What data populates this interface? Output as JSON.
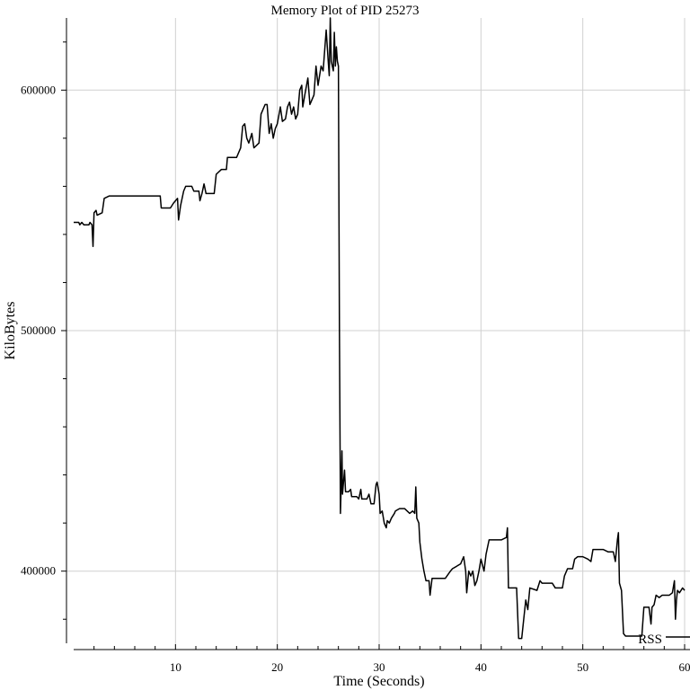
{
  "chart_data": {
    "type": "line",
    "title": "Memory Plot of PID 25273",
    "xlabel": "Time (Seconds)",
    "ylabel": "KiloBytes",
    "xlim": [
      0,
      60
    ],
    "ylim": [
      370000,
      630000
    ],
    "x_ticks": [
      10,
      20,
      30,
      40,
      50,
      60
    ],
    "x_tick_labels": [
      "10",
      "20",
      "30",
      "40",
      "50",
      "60"
    ],
    "y_ticks": [
      400000,
      500000,
      600000
    ],
    "y_tick_labels": [
      "400000",
      "500000",
      "600000"
    ],
    "grid": true,
    "legend": {
      "position": "bottom-right",
      "entries": [
        "RSS"
      ]
    },
    "series": [
      {
        "name": "RSS",
        "color": "#000000",
        "points": [
          [
            0,
            545000
          ],
          [
            0.5,
            545000
          ],
          [
            0.6,
            544000
          ],
          [
            0.8,
            545000
          ],
          [
            1.0,
            544000
          ],
          [
            1.5,
            544000
          ],
          [
            1.6,
            545000
          ],
          [
            1.8,
            544000
          ],
          [
            1.9,
            535000
          ],
          [
            2.0,
            549000
          ],
          [
            2.2,
            550000
          ],
          [
            2.3,
            548000
          ],
          [
            2.8,
            549000
          ],
          [
            3.0,
            555000
          ],
          [
            3.5,
            556000
          ],
          [
            8.5,
            556000
          ],
          [
            8.6,
            551000
          ],
          [
            9.5,
            551000
          ],
          [
            9.8,
            553000
          ],
          [
            10.2,
            555000
          ],
          [
            10.3,
            546000
          ],
          [
            10.5,
            552000
          ],
          [
            10.8,
            558000
          ],
          [
            11.0,
            560000
          ],
          [
            11.6,
            560000
          ],
          [
            11.8,
            558000
          ],
          [
            12.3,
            558000
          ],
          [
            12.4,
            554000
          ],
          [
            12.6,
            557000
          ],
          [
            12.8,
            561000
          ],
          [
            13.0,
            557000
          ],
          [
            13.8,
            557000
          ],
          [
            14.0,
            565000
          ],
          [
            14.5,
            567000
          ],
          [
            15.0,
            567000
          ],
          [
            15.1,
            572000
          ],
          [
            16.0,
            572000
          ],
          [
            16.4,
            576000
          ],
          [
            16.6,
            585000
          ],
          [
            16.8,
            586000
          ],
          [
            17.0,
            580000
          ],
          [
            17.2,
            578000
          ],
          [
            17.5,
            582000
          ],
          [
            17.7,
            576000
          ],
          [
            18.2,
            578000
          ],
          [
            18.4,
            590000
          ],
          [
            18.6,
            592000
          ],
          [
            18.8,
            594000
          ],
          [
            19.0,
            594000
          ],
          [
            19.2,
            582000
          ],
          [
            19.4,
            586000
          ],
          [
            19.6,
            580000
          ],
          [
            19.8,
            584000
          ],
          [
            20.0,
            586000
          ],
          [
            20.3,
            593000
          ],
          [
            20.5,
            587000
          ],
          [
            20.8,
            588000
          ],
          [
            21.0,
            593000
          ],
          [
            21.2,
            595000
          ],
          [
            21.4,
            590000
          ],
          [
            21.6,
            593000
          ],
          [
            21.8,
            588000
          ],
          [
            22.0,
            590000
          ],
          [
            22.2,
            600000
          ],
          [
            22.4,
            602000
          ],
          [
            22.5,
            593000
          ],
          [
            22.7,
            598000
          ],
          [
            23.0,
            605000
          ],
          [
            23.2,
            594000
          ],
          [
            23.4,
            596000
          ],
          [
            23.6,
            598000
          ],
          [
            23.8,
            610000
          ],
          [
            24.0,
            602000
          ],
          [
            24.3,
            610000
          ],
          [
            24.5,
            608000
          ],
          [
            24.8,
            625000
          ],
          [
            25.0,
            612000
          ],
          [
            25.1,
            606000
          ],
          [
            25.2,
            630000
          ],
          [
            25.3,
            612000
          ],
          [
            25.5,
            608000
          ],
          [
            25.6,
            624000
          ],
          [
            25.7,
            610000
          ],
          [
            25.8,
            618000
          ],
          [
            25.9,
            612000
          ],
          [
            26.0,
            610000
          ],
          [
            26.1,
            500000
          ],
          [
            26.2,
            424000
          ],
          [
            26.3,
            440000
          ],
          [
            26.35,
            450000
          ],
          [
            26.4,
            432000
          ],
          [
            26.6,
            442000
          ],
          [
            26.7,
            433000
          ],
          [
            27.0,
            433000
          ],
          [
            27.2,
            434000
          ],
          [
            27.3,
            431000
          ],
          [
            27.8,
            431000
          ],
          [
            28.0,
            430000
          ],
          [
            28.2,
            434000
          ],
          [
            28.3,
            430000
          ],
          [
            28.8,
            430000
          ],
          [
            29.0,
            432000
          ],
          [
            29.2,
            428000
          ],
          [
            29.5,
            428000
          ],
          [
            29.7,
            436000
          ],
          [
            29.8,
            437000
          ],
          [
            30.0,
            432000
          ],
          [
            30.1,
            424000
          ],
          [
            30.3,
            425000
          ],
          [
            30.5,
            420000
          ],
          [
            30.7,
            418000
          ],
          [
            30.8,
            421000
          ],
          [
            31.0,
            420000
          ],
          [
            31.2,
            422000
          ],
          [
            31.5,
            424000
          ],
          [
            31.6,
            425000
          ],
          [
            32.0,
            426000
          ],
          [
            32.5,
            426000
          ],
          [
            33.0,
            424000
          ],
          [
            33.3,
            425000
          ],
          [
            33.5,
            424000
          ],
          [
            33.6,
            435000
          ],
          [
            33.7,
            422000
          ],
          [
            33.9,
            420000
          ],
          [
            34.0,
            412000
          ],
          [
            34.2,
            405000
          ],
          [
            34.4,
            400000
          ],
          [
            34.6,
            396000
          ],
          [
            34.9,
            396000
          ],
          [
            35.0,
            390000
          ],
          [
            35.2,
            397000
          ],
          [
            36.5,
            397000
          ],
          [
            37.0,
            400000
          ],
          [
            37.2,
            401000
          ],
          [
            38.0,
            403000
          ],
          [
            38.3,
            406000
          ],
          [
            38.5,
            400000
          ],
          [
            38.6,
            391000
          ],
          [
            38.8,
            400000
          ],
          [
            39.0,
            398000
          ],
          [
            39.2,
            400000
          ],
          [
            39.4,
            394000
          ],
          [
            39.6,
            396000
          ],
          [
            39.8,
            400000
          ],
          [
            40.0,
            405000
          ],
          [
            40.3,
            400000
          ],
          [
            40.5,
            407000
          ],
          [
            40.8,
            413000
          ],
          [
            42.0,
            413000
          ],
          [
            42.5,
            414000
          ],
          [
            42.6,
            418000
          ],
          [
            42.7,
            393000
          ],
          [
            43.0,
            393000
          ],
          [
            43.5,
            393000
          ],
          [
            43.7,
            372000
          ],
          [
            44.0,
            372000
          ],
          [
            44.2,
            380000
          ],
          [
            44.4,
            388000
          ],
          [
            44.6,
            384000
          ],
          [
            44.8,
            393000
          ],
          [
            45.5,
            392000
          ],
          [
            45.8,
            396000
          ],
          [
            46.0,
            395000
          ],
          [
            47.0,
            395000
          ],
          [
            47.3,
            393000
          ],
          [
            47.5,
            393000
          ],
          [
            48.0,
            393000
          ],
          [
            48.2,
            398000
          ],
          [
            48.5,
            401000
          ],
          [
            49.0,
            401000
          ],
          [
            49.2,
            405000
          ],
          [
            49.5,
            406000
          ],
          [
            50.0,
            406000
          ],
          [
            50.5,
            405000
          ],
          [
            50.8,
            404000
          ],
          [
            51.0,
            409000
          ],
          [
            52.0,
            409000
          ],
          [
            52.5,
            408000
          ],
          [
            53.0,
            408000
          ],
          [
            53.2,
            404000
          ],
          [
            53.4,
            413000
          ],
          [
            53.5,
            416000
          ],
          [
            53.6,
            395000
          ],
          [
            53.8,
            392000
          ],
          [
            54.0,
            374000
          ],
          [
            54.2,
            373000
          ],
          [
            55.0,
            373000
          ],
          [
            55.8,
            373000
          ],
          [
            56.0,
            385000
          ],
          [
            56.5,
            385000
          ],
          [
            56.7,
            378000
          ],
          [
            56.8,
            385000
          ],
          [
            57.0,
            386000
          ],
          [
            57.2,
            390000
          ],
          [
            57.5,
            389000
          ],
          [
            57.8,
            390000
          ],
          [
            58.5,
            390000
          ],
          [
            58.8,
            391000
          ],
          [
            59.0,
            396000
          ],
          [
            59.1,
            380000
          ],
          [
            59.2,
            388000
          ],
          [
            59.3,
            392000
          ],
          [
            59.5,
            391000
          ],
          [
            59.8,
            393000
          ],
          [
            60.0,
            392000
          ]
        ]
      }
    ]
  }
}
